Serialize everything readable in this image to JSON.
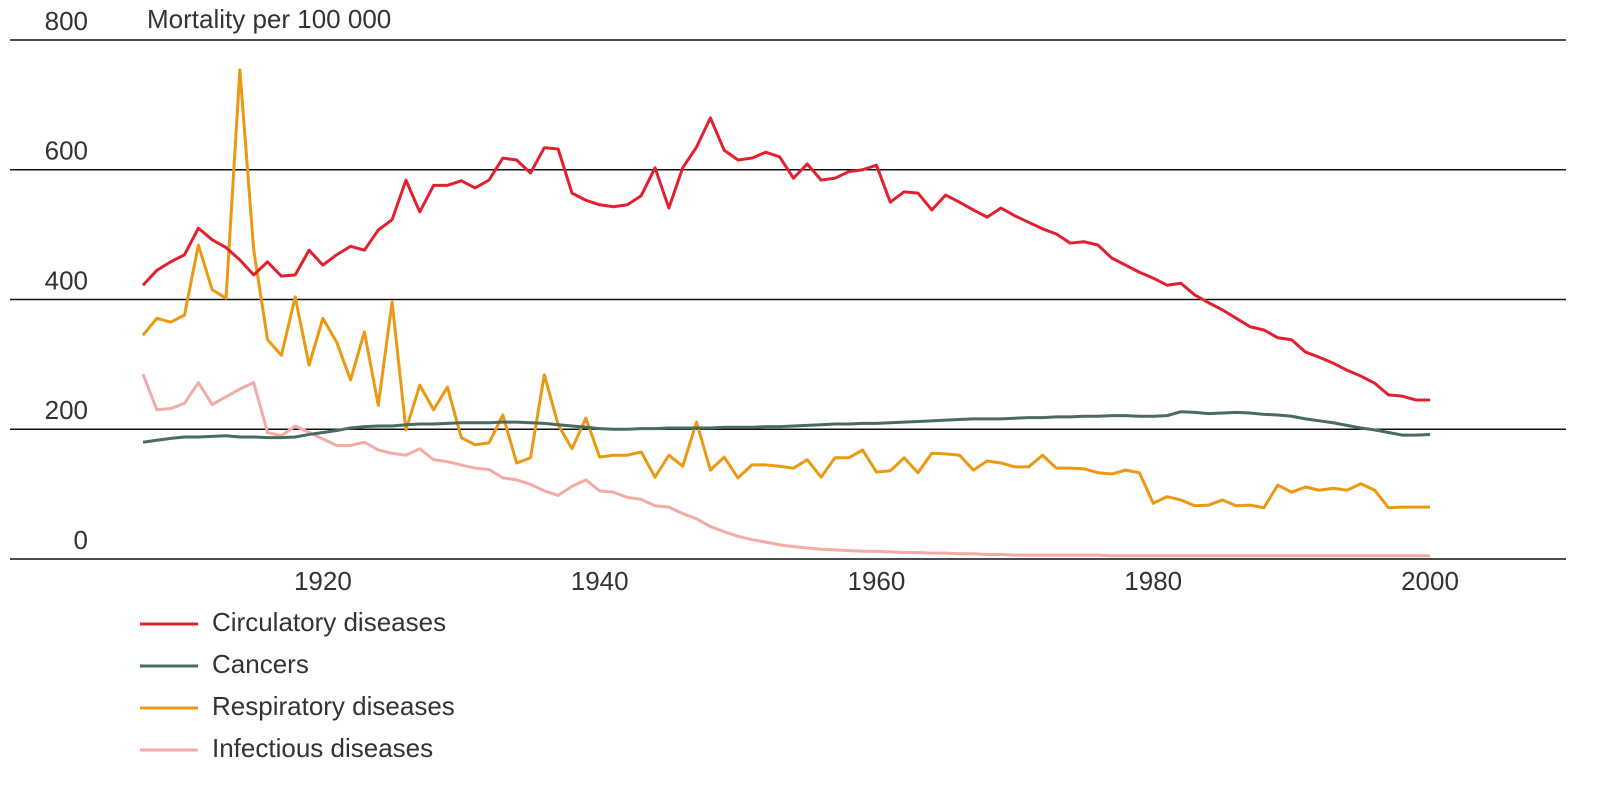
{
  "chart_data": {
    "type": "line",
    "title": "Mortality per 100 000",
    "x": [
      1907,
      1908,
      1909,
      1910,
      1911,
      1912,
      1913,
      1914,
      1915,
      1916,
      1917,
      1918,
      1919,
      1920,
      1921,
      1922,
      1923,
      1924,
      1925,
      1926,
      1927,
      1928,
      1929,
      1930,
      1931,
      1932,
      1933,
      1934,
      1935,
      1936,
      1937,
      1938,
      1939,
      1940,
      1941,
      1942,
      1943,
      1944,
      1945,
      1946,
      1947,
      1948,
      1949,
      1950,
      1951,
      1952,
      1953,
      1954,
      1955,
      1956,
      1957,
      1958,
      1959,
      1960,
      1961,
      1962,
      1963,
      1964,
      1965,
      1966,
      1967,
      1968,
      1969,
      1970,
      1971,
      1972,
      1973,
      1974,
      1975,
      1976,
      1977,
      1978,
      1979,
      1980,
      1981,
      1982,
      1983,
      1984,
      1985,
      1986,
      1987,
      1988,
      1989,
      1990,
      1991,
      1992,
      1993,
      1994,
      1995,
      1996,
      1997,
      1998,
      1999,
      2000
    ],
    "series": [
      {
        "name": "Circulatory diseases",
        "color": "#e2202f",
        "values": [
          422,
          445,
          458,
          469,
          510,
          492,
          480,
          461,
          438,
          458,
          436,
          438,
          476,
          453,
          469,
          482,
          476,
          507,
          523,
          584,
          535,
          576,
          576,
          583,
          572,
          584,
          618,
          615,
          595,
          634,
          632,
          564,
          553,
          546,
          543,
          546,
          560,
          603,
          541,
          603,
          635,
          680,
          630,
          615,
          618,
          627,
          620,
          587,
          609,
          584,
          587,
          597,
          600,
          607,
          550,
          566,
          564,
          538,
          561,
          550,
          538,
          527,
          541,
          529,
          519,
          509,
          501,
          487,
          489,
          484,
          464,
          453,
          442,
          433,
          422,
          425,
          407,
          395,
          384,
          371,
          358,
          353,
          341,
          338,
          319,
          311,
          302,
          291,
          282,
          271,
          253,
          251,
          245,
          245
        ]
      },
      {
        "name": "Cancers",
        "color": "#4a6b5e",
        "values": [
          180,
          183,
          186,
          188,
          188,
          189,
          190,
          188,
          188,
          187,
          187,
          188,
          192,
          195,
          198,
          202,
          204,
          205,
          205,
          207,
          208,
          208,
          209,
          210,
          210,
          210,
          211,
          211,
          210,
          209,
          207,
          205,
          203,
          201,
          200,
          200,
          201,
          201,
          202,
          202,
          202,
          202,
          203,
          203,
          203,
          204,
          204,
          205,
          206,
          207,
          208,
          208,
          209,
          209,
          210,
          211,
          212,
          213,
          214,
          215,
          216,
          216,
          216,
          217,
          218,
          218,
          219,
          219,
          220,
          220,
          221,
          221,
          220,
          220,
          221,
          227,
          226,
          224,
          225,
          226,
          225,
          223,
          222,
          220,
          216,
          213,
          210,
          206,
          202,
          199,
          195,
          191,
          191,
          192
        ]
      },
      {
        "name": "Respiratory diseases",
        "color": "#eb9812",
        "values": [
          345,
          371,
          365,
          376,
          484,
          415,
          402,
          754,
          476,
          338,
          314,
          404,
          299,
          371,
          334,
          276,
          350,
          237,
          396,
          199,
          268,
          230,
          265,
          187,
          176,
          179,
          222,
          148,
          156,
          284,
          207,
          170,
          217,
          157,
          160,
          160,
          165,
          126,
          160,
          143,
          211,
          137,
          157,
          125,
          145,
          145,
          143,
          140,
          153,
          126,
          156,
          156,
          168,
          134,
          136,
          156,
          133,
          163,
          162,
          160,
          137,
          151,
          148,
          142,
          142,
          160,
          140,
          140,
          139,
          133,
          131,
          137,
          133,
          86,
          96,
          91,
          82,
          83,
          91,
          82,
          83,
          79,
          114,
          103,
          111,
          106,
          109,
          106,
          116,
          106,
          79,
          80,
          80,
          80
        ]
      },
      {
        "name": "Infectious diseases",
        "color": "#f4aaa5",
        "values": [
          285,
          230,
          232,
          240,
          272,
          238,
          250,
          262,
          272,
          195,
          190,
          205,
          195,
          185,
          175,
          175,
          180,
          168,
          163,
          160,
          170,
          153,
          150,
          145,
          140,
          138,
          125,
          122,
          115,
          105,
          98,
          112,
          122,
          105,
          103,
          95,
          92,
          82,
          80,
          70,
          62,
          50,
          42,
          35,
          30,
          26,
          22,
          19,
          17,
          15,
          14,
          13,
          12,
          12,
          11,
          10,
          10,
          9,
          9,
          8,
          8,
          7,
          7,
          6,
          6,
          6,
          6,
          6,
          6,
          6,
          5,
          5,
          5,
          5,
          5,
          5,
          5,
          5,
          5,
          5,
          5,
          5,
          5,
          5,
          5,
          5,
          5,
          5,
          5,
          5,
          5,
          5,
          5,
          5
        ]
      }
    ],
    "xlim": [
      1907,
      2000
    ],
    "xticks": [
      1920,
      1940,
      1960,
      1980,
      2000
    ],
    "ylim": [
      0,
      800
    ],
    "yticks": [
      0,
      200,
      400,
      600,
      800
    ],
    "grid": true
  }
}
